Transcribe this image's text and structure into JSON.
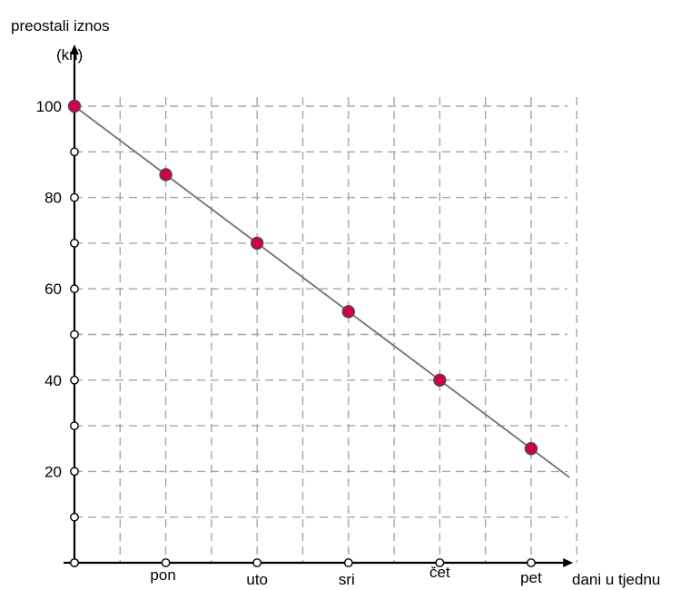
{
  "chart_data": {
    "type": "line",
    "ylabel_line1": "preostali iznos",
    "ylabel_line2": "(kn)",
    "xlabel": "dani u tjednu",
    "categories": [
      "",
      "pon",
      "uto",
      "sri",
      "čet",
      "pet"
    ],
    "x_tick_labels": [
      "pon",
      "uto",
      "sri",
      "čet",
      "pet"
    ],
    "y_tick_labels": [
      "20",
      "40",
      "60",
      "80",
      "100"
    ],
    "ylim": [
      0,
      100
    ],
    "y_major_step": 20,
    "y_minor_step": 10,
    "grid": true,
    "series": [
      {
        "values": [
          100,
          85,
          70,
          55,
          40,
          25
        ]
      }
    ],
    "colors": {
      "point": "#d1004f",
      "line": "#707070",
      "grid": "#a6a6a6",
      "axis": "#000000"
    }
  }
}
